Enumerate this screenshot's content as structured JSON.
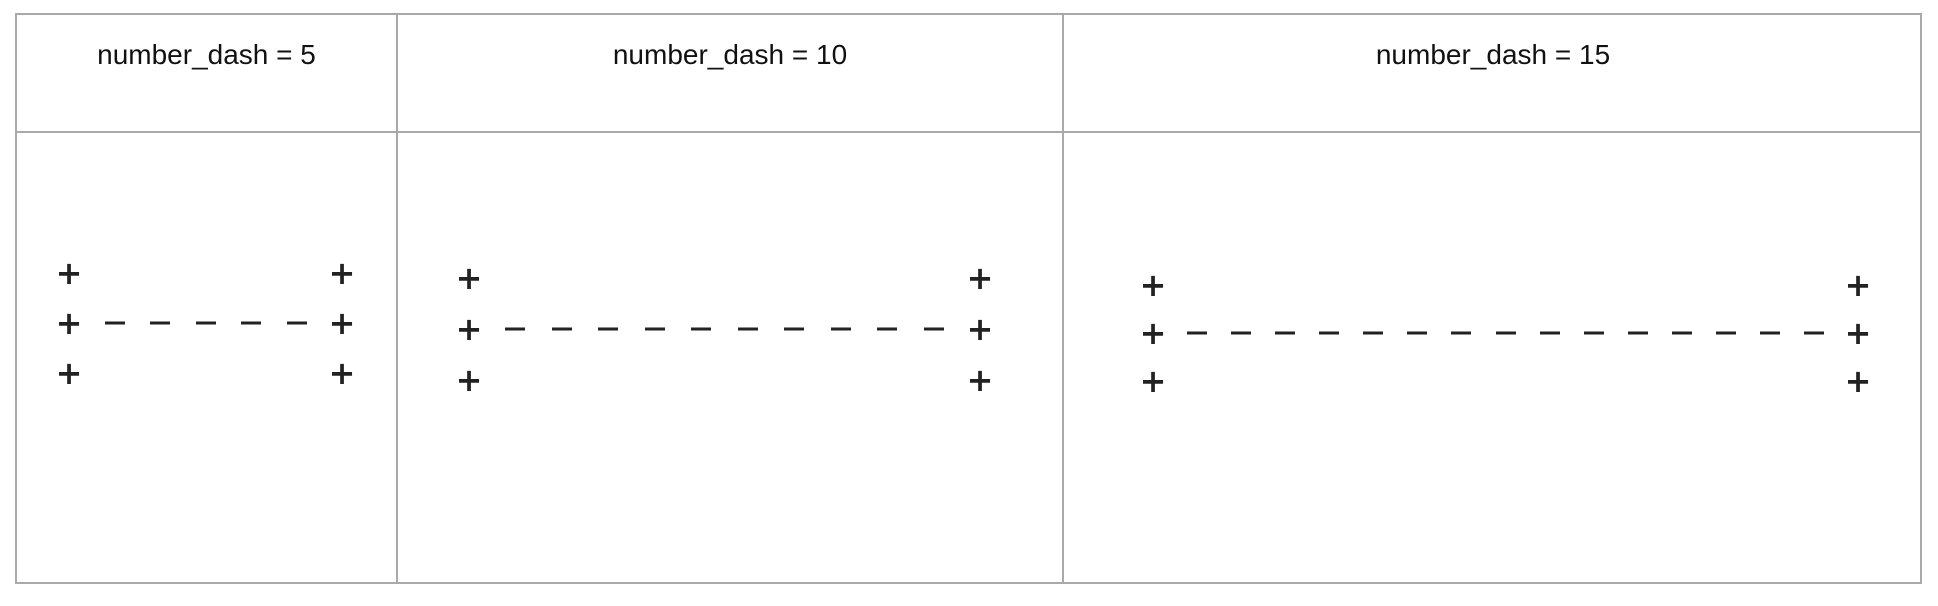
{
  "panels": [
    {
      "label": "number_dash = 5",
      "plus_symbol": "+",
      "dash_count": 5
    },
    {
      "label": "number_dash = 10",
      "plus_symbol": "+",
      "dash_count": 10
    },
    {
      "label": "number_dash = 15",
      "plus_symbol": "+",
      "dash_count": 15
    }
  ]
}
